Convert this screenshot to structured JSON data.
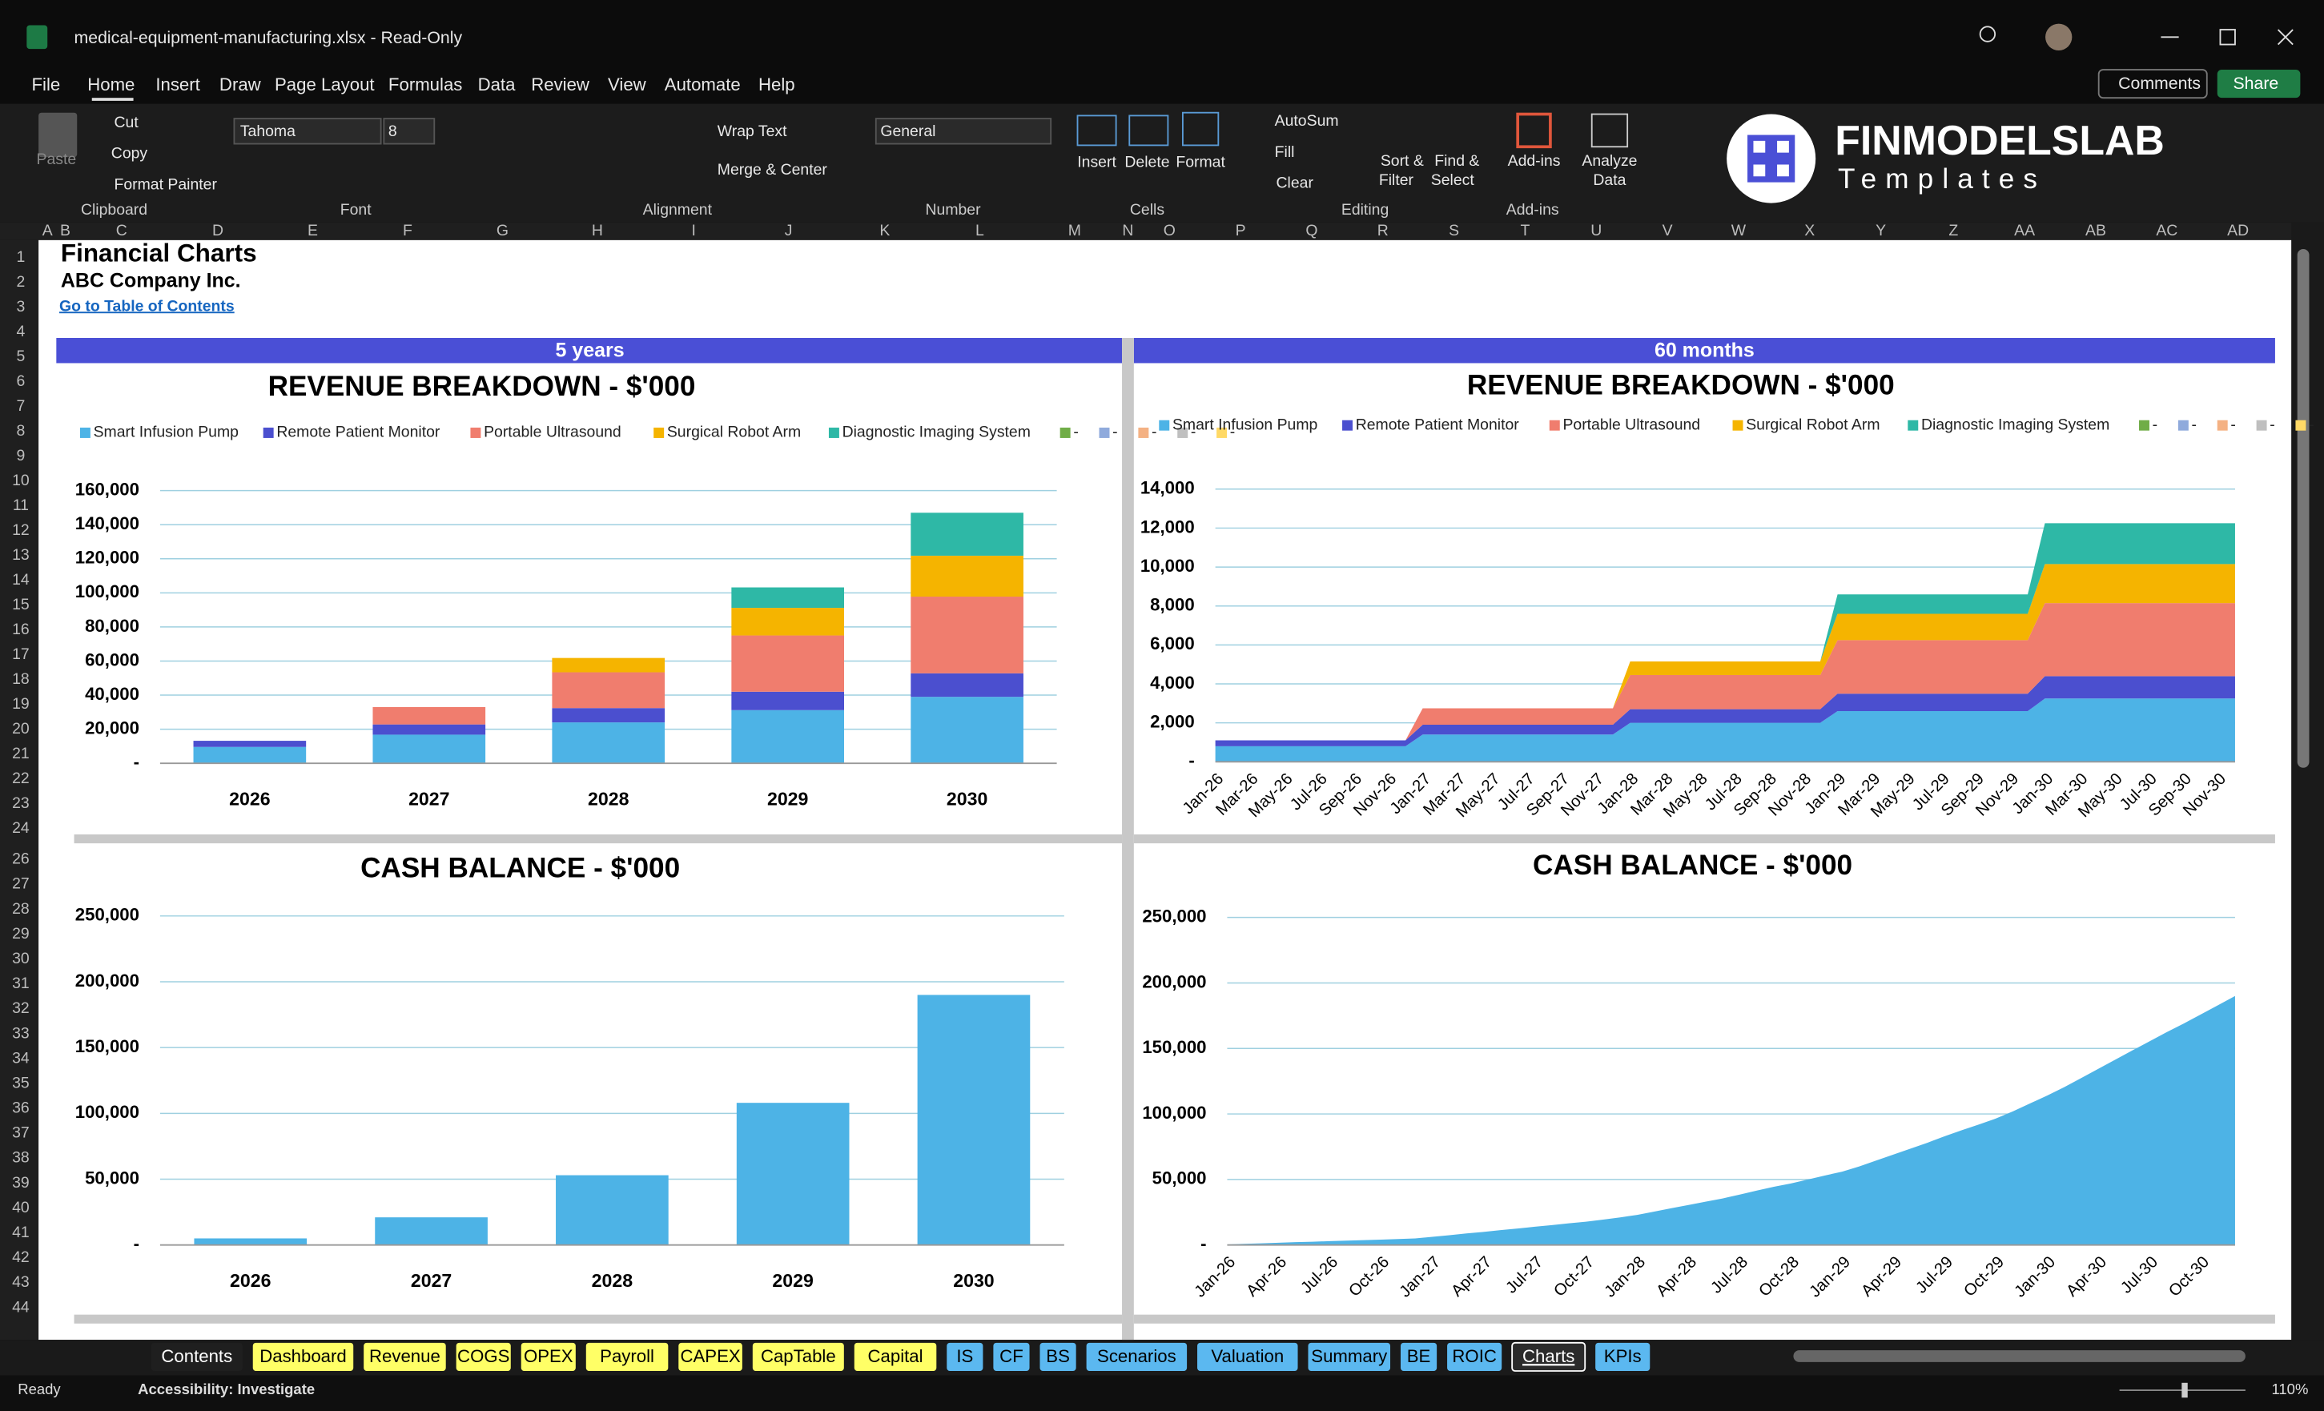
{
  "title_bar": {
    "file": "medical-equipment-manufacturing.xlsx  -  Read-Only"
  },
  "menu": [
    "File",
    "Home",
    "Insert",
    "Draw",
    "Page Layout",
    "Formulas",
    "Data",
    "Review",
    "View",
    "Automate",
    "Help"
  ],
  "buttons": {
    "comments": "Comments",
    "share": "Share"
  },
  "ribbon": {
    "paste": "Paste",
    "cut": "Cut",
    "copy": "Copy",
    "format_painter": "Format Painter",
    "clipboard": "Clipboard",
    "font_name": "Tahoma",
    "font_size": 8,
    "font": "Font",
    "wrap_text": "Wrap Text",
    "merge_center": "Merge & Center",
    "alignment": "Alignment",
    "number_format": "General",
    "number": "Number",
    "insert": "Insert",
    "delete": "Delete",
    "format": "Format",
    "cells": "Cells",
    "autosum": "AutoSum",
    "fill": "Fill",
    "clear": "Clear",
    "sort_filter": [
      "Sort &",
      "Filter"
    ],
    "find_select": [
      "Find &",
      "Select"
    ],
    "editing": "Editing",
    "add_ins": "Add-ins",
    "add_ins_group": "Add-ins",
    "analyze": [
      "Analyze",
      "Data"
    ]
  },
  "logo": {
    "name": "FINMODELSLAB",
    "tagline": "Templates"
  },
  "columns": [
    "A",
    "B",
    "C",
    "D",
    "E",
    "F",
    "G",
    "H",
    "I",
    "J",
    "K",
    "L",
    "M",
    "N",
    "O",
    "P",
    "Q",
    "R",
    "S",
    "T",
    "U",
    "V",
    "W",
    "X",
    "Y",
    "Z",
    "AA",
    "AB",
    "AC",
    "AD"
  ],
  "rows": [
    1,
    2,
    3,
    4,
    5,
    6,
    7,
    8,
    9,
    10,
    11,
    12,
    13,
    14,
    15,
    16,
    17,
    18,
    19,
    20,
    21,
    22,
    23,
    24,
    26,
    27,
    28,
    29,
    30,
    31,
    32,
    33,
    34,
    35,
    36,
    37,
    38,
    39,
    40,
    41,
    42,
    43,
    44
  ],
  "sheet": {
    "title": "Financial Charts",
    "company": "ABC Company Inc.",
    "link": "Go to Table of Contents",
    "band_left": "5 years",
    "band_right": "60 months"
  },
  "chart_data": [
    {
      "type": "bar",
      "title": "REVENUE BREAKDOWN - $'000",
      "categories": [
        "2026",
        "2027",
        "2028",
        "2029",
        "2030"
      ],
      "series": [
        {
          "name": "Smart Infusion Pump",
          "color": "#4db3e6",
          "values": [
            9600,
            16800,
            24000,
            31200,
            39000
          ]
        },
        {
          "name": "Remote Patient Monitor",
          "color": "#4b4fcf",
          "values": [
            3600,
            6000,
            8400,
            10800,
            13800
          ]
        },
        {
          "name": "Portable Ultrasound",
          "color": "#f07d6e",
          "values": [
            0,
            10200,
            21000,
            33000,
            45000
          ]
        },
        {
          "name": "Surgical Robot Arm",
          "color": "#f5b400",
          "values": [
            0,
            0,
            8400,
            16200,
            24000
          ]
        },
        {
          "name": "Diagnostic Imaging System",
          "color": "#2eb8a6",
          "values": [
            0,
            0,
            0,
            12000,
            25200
          ]
        }
      ],
      "legend_extra": [
        {
          "name": "-",
          "color": "#70ad47"
        },
        {
          "name": "-",
          "color": "#8faadc"
        },
        {
          "name": "-",
          "color": "#f4b183"
        },
        {
          "name": "-",
          "color": "#bfbfbf"
        },
        {
          "name": "-",
          "color": "#ffd966"
        }
      ],
      "ylim": [
        0,
        160000
      ],
      "yticks": [
        {
          "value": 0,
          "label": "-"
        },
        {
          "value": 20000,
          "label": "20,000"
        },
        {
          "value": 40000,
          "label": "40,000"
        },
        {
          "value": 60000,
          "label": "60,000"
        },
        {
          "value": 80000,
          "label": "80,000"
        },
        {
          "value": 100000,
          "label": "100,000"
        },
        {
          "value": 120000,
          "label": "120,000"
        },
        {
          "value": 140000,
          "label": "140,000"
        },
        {
          "value": 160000,
          "label": "160,000"
        }
      ],
      "grid": true
    },
    {
      "type": "area",
      "title": "REVENUE BREAKDOWN - $'000",
      "categories": [
        "Jan-26",
        null,
        "Mar-26",
        null,
        "May-26",
        null,
        "Jul-26",
        null,
        "Sep-26",
        null,
        "Nov-26",
        null,
        "Jan-27",
        null,
        "Mar-27",
        null,
        "May-27",
        null,
        "Jul-27",
        null,
        "Sep-27",
        null,
        "Nov-27",
        null,
        "Jan-28",
        null,
        "Mar-28",
        null,
        "May-28",
        null,
        "Jul-28",
        null,
        "Sep-28",
        null,
        "Nov-28",
        null,
        "Jan-29",
        null,
        "Mar-29",
        null,
        "May-29",
        null,
        "Jul-29",
        null,
        "Sep-29",
        null,
        "Nov-29",
        null,
        "Jan-30",
        null,
        "Mar-30",
        null,
        "May-30",
        null,
        "Jul-30",
        null,
        "Sep-30",
        null,
        "Nov-30",
        null
      ],
      "series": [
        {
          "name": "Smart Infusion Pump",
          "color": "#4db3e6",
          "values": [
            800,
            800,
            800,
            800,
            800,
            800,
            800,
            800,
            800,
            800,
            800,
            800,
            1400,
            1400,
            1400,
            1400,
            1400,
            1400,
            1400,
            1400,
            1400,
            1400,
            1400,
            1400,
            2000,
            2000,
            2000,
            2000,
            2000,
            2000,
            2000,
            2000,
            2000,
            2000,
            2000,
            2000,
            2600,
            2600,
            2600,
            2600,
            2600,
            2600,
            2600,
            2600,
            2600,
            2600,
            2600,
            2600,
            3250,
            3250,
            3250,
            3250,
            3250,
            3250,
            3250,
            3250,
            3250,
            3250,
            3250,
            3250
          ]
        },
        {
          "name": "Remote Patient Monitor",
          "color": "#4b4fcf",
          "values": [
            300,
            300,
            300,
            300,
            300,
            300,
            300,
            300,
            300,
            300,
            300,
            300,
            500,
            500,
            500,
            500,
            500,
            500,
            500,
            500,
            500,
            500,
            500,
            500,
            700,
            700,
            700,
            700,
            700,
            700,
            700,
            700,
            700,
            700,
            700,
            700,
            900,
            900,
            900,
            900,
            900,
            900,
            900,
            900,
            900,
            900,
            900,
            900,
            1150,
            1150,
            1150,
            1150,
            1150,
            1150,
            1150,
            1150,
            1150,
            1150,
            1150,
            1150
          ]
        },
        {
          "name": "Portable Ultrasound",
          "color": "#f07d6e",
          "values": [
            0,
            0,
            0,
            0,
            0,
            0,
            0,
            0,
            0,
            0,
            0,
            0,
            850,
            850,
            850,
            850,
            850,
            850,
            850,
            850,
            850,
            850,
            850,
            850,
            1750,
            1750,
            1750,
            1750,
            1750,
            1750,
            1750,
            1750,
            1750,
            1750,
            1750,
            1750,
            2750,
            2750,
            2750,
            2750,
            2750,
            2750,
            2750,
            2750,
            2750,
            2750,
            2750,
            2750,
            3750,
            3750,
            3750,
            3750,
            3750,
            3750,
            3750,
            3750,
            3750,
            3750,
            3750,
            3750
          ]
        },
        {
          "name": "Surgical Robot Arm",
          "color": "#f5b400",
          "values": [
            0,
            0,
            0,
            0,
            0,
            0,
            0,
            0,
            0,
            0,
            0,
            0,
            0,
            0,
            0,
            0,
            0,
            0,
            0,
            0,
            0,
            0,
            0,
            0,
            700,
            700,
            700,
            700,
            700,
            700,
            700,
            700,
            700,
            700,
            700,
            700,
            1350,
            1350,
            1350,
            1350,
            1350,
            1350,
            1350,
            1350,
            1350,
            1350,
            1350,
            1350,
            2000,
            2000,
            2000,
            2000,
            2000,
            2000,
            2000,
            2000,
            2000,
            2000,
            2000,
            2000
          ]
        },
        {
          "name": "Diagnostic Imaging System",
          "color": "#2eb8a6",
          "values": [
            0,
            0,
            0,
            0,
            0,
            0,
            0,
            0,
            0,
            0,
            0,
            0,
            0,
            0,
            0,
            0,
            0,
            0,
            0,
            0,
            0,
            0,
            0,
            0,
            0,
            0,
            0,
            0,
            0,
            0,
            0,
            0,
            0,
            0,
            0,
            0,
            1000,
            1000,
            1000,
            1000,
            1000,
            1000,
            1000,
            1000,
            1000,
            1000,
            1000,
            1000,
            2100,
            2100,
            2100,
            2100,
            2100,
            2100,
            2100,
            2100,
            2100,
            2100,
            2100,
            2100
          ]
        }
      ],
      "legend_extra": [
        {
          "name": "-",
          "color": "#70ad47"
        },
        {
          "name": "-",
          "color": "#8faadc"
        },
        {
          "name": "-",
          "color": "#f4b183"
        },
        {
          "name": "-",
          "color": "#bfbfbf"
        },
        {
          "name": "-",
          "color": "#ffd966"
        }
      ],
      "ylim": [
        0,
        14000
      ],
      "yticks": [
        {
          "value": 0,
          "label": "-"
        },
        {
          "value": 2000,
          "label": "2,000"
        },
        {
          "value": 4000,
          "label": "4,000"
        },
        {
          "value": 6000,
          "label": "6,000"
        },
        {
          "value": 8000,
          "label": "8,000"
        },
        {
          "value": 10000,
          "label": "10,000"
        },
        {
          "value": 12000,
          "label": "12,000"
        },
        {
          "value": 14000,
          "label": "14,000"
        }
      ],
      "grid": true
    },
    {
      "type": "bar",
      "title": "CASH BALANCE - $'000",
      "categories": [
        "2026",
        "2027",
        "2028",
        "2029",
        "2030"
      ],
      "values": [
        5000,
        21000,
        53000,
        108000,
        190000
      ],
      "color": "#4db3e6",
      "ylim": [
        0,
        250000
      ],
      "yticks": [
        {
          "value": 0,
          "label": "-"
        },
        {
          "value": 50000,
          "label": "50,000"
        },
        {
          "value": 100000,
          "label": "100,000"
        },
        {
          "value": 150000,
          "label": "150,000"
        },
        {
          "value": 200000,
          "label": "200,000"
        },
        {
          "value": 250000,
          "label": "250,000"
        }
      ],
      "grid": true
    },
    {
      "type": "area",
      "title": "CASH BALANCE - $'000",
      "categories": [
        "Jan-26",
        null,
        null,
        "Apr-26",
        null,
        null,
        "Jul-26",
        null,
        null,
        "Oct-26",
        null,
        null,
        "Jan-27",
        null,
        null,
        "Apr-27",
        null,
        null,
        "Jul-27",
        null,
        null,
        "Oct-27",
        null,
        null,
        "Jan-28",
        null,
        null,
        "Apr-28",
        null,
        null,
        "Jul-28",
        null,
        null,
        "Oct-28",
        null,
        null,
        "Jan-29",
        null,
        null,
        "Apr-29",
        null,
        null,
        "Jul-29",
        null,
        null,
        "Oct-29",
        null,
        null,
        "Jan-30",
        null,
        null,
        "Apr-30",
        null,
        null,
        "Jul-30",
        null,
        null,
        "Oct-30",
        null,
        null
      ],
      "values": [
        500,
        900,
        1300,
        1700,
        2100,
        2500,
        2900,
        3300,
        3700,
        4100,
        4500,
        5000,
        6200,
        7500,
        8800,
        10000,
        11300,
        12600,
        13900,
        15200,
        16500,
        17800,
        19400,
        21000,
        23000,
        25500,
        28000,
        30500,
        33000,
        35500,
        38500,
        41500,
        44500,
        47000,
        50000,
        53000,
        56000,
        60000,
        64500,
        69000,
        73500,
        78000,
        83000,
        87500,
        92000,
        96500,
        102000,
        108000,
        114000,
        120500,
        127500,
        134500,
        141500,
        148500,
        155500,
        162500,
        169000,
        176000,
        183000,
        190000
      ],
      "color": "#4db3e6",
      "ylim": [
        0,
        250000
      ],
      "yticks": [
        {
          "value": 0,
          "label": "-"
        },
        {
          "value": 50000,
          "label": "50,000"
        },
        {
          "value": 100000,
          "label": "100,000"
        },
        {
          "value": 150000,
          "label": "150,000"
        },
        {
          "value": 200000,
          "label": "200,000"
        },
        {
          "value": 250000,
          "label": "250,000"
        }
      ],
      "grid": true
    }
  ],
  "tabs": [
    {
      "label": "Contents",
      "color": "#1f1f1f"
    },
    {
      "label": "Dashboard",
      "color": "#ffff66"
    },
    {
      "label": "Revenue",
      "color": "#ffff66"
    },
    {
      "label": "COGS",
      "color": "#ffff66"
    },
    {
      "label": "OPEX",
      "color": "#ffff66"
    },
    {
      "label": "Payroll",
      "color": "#ffff66"
    },
    {
      "label": "CAPEX",
      "color": "#ffff66"
    },
    {
      "label": "CapTable",
      "color": "#ffff66"
    },
    {
      "label": "Capital",
      "color": "#ffff66"
    },
    {
      "label": "IS",
      "color": "#5bb8f0"
    },
    {
      "label": "CF",
      "color": "#5bb8f0"
    },
    {
      "label": "BS",
      "color": "#5bb8f0"
    },
    {
      "label": "Scenarios",
      "color": "#5bb8f0"
    },
    {
      "label": "Valuation",
      "color": "#5bb8f0"
    },
    {
      "label": "Summary",
      "color": "#5bb8f0"
    },
    {
      "label": "BE",
      "color": "#5bb8f0"
    },
    {
      "label": "ROIC",
      "color": "#5bb8f0"
    },
    {
      "label": "Charts",
      "color": "#2b2b2b"
    },
    {
      "label": "KPIs",
      "color": "#5bb8f0"
    }
  ],
  "status": {
    "ready": "Ready",
    "accessibility": "Accessibility: Investigate",
    "zoom": "110%"
  }
}
